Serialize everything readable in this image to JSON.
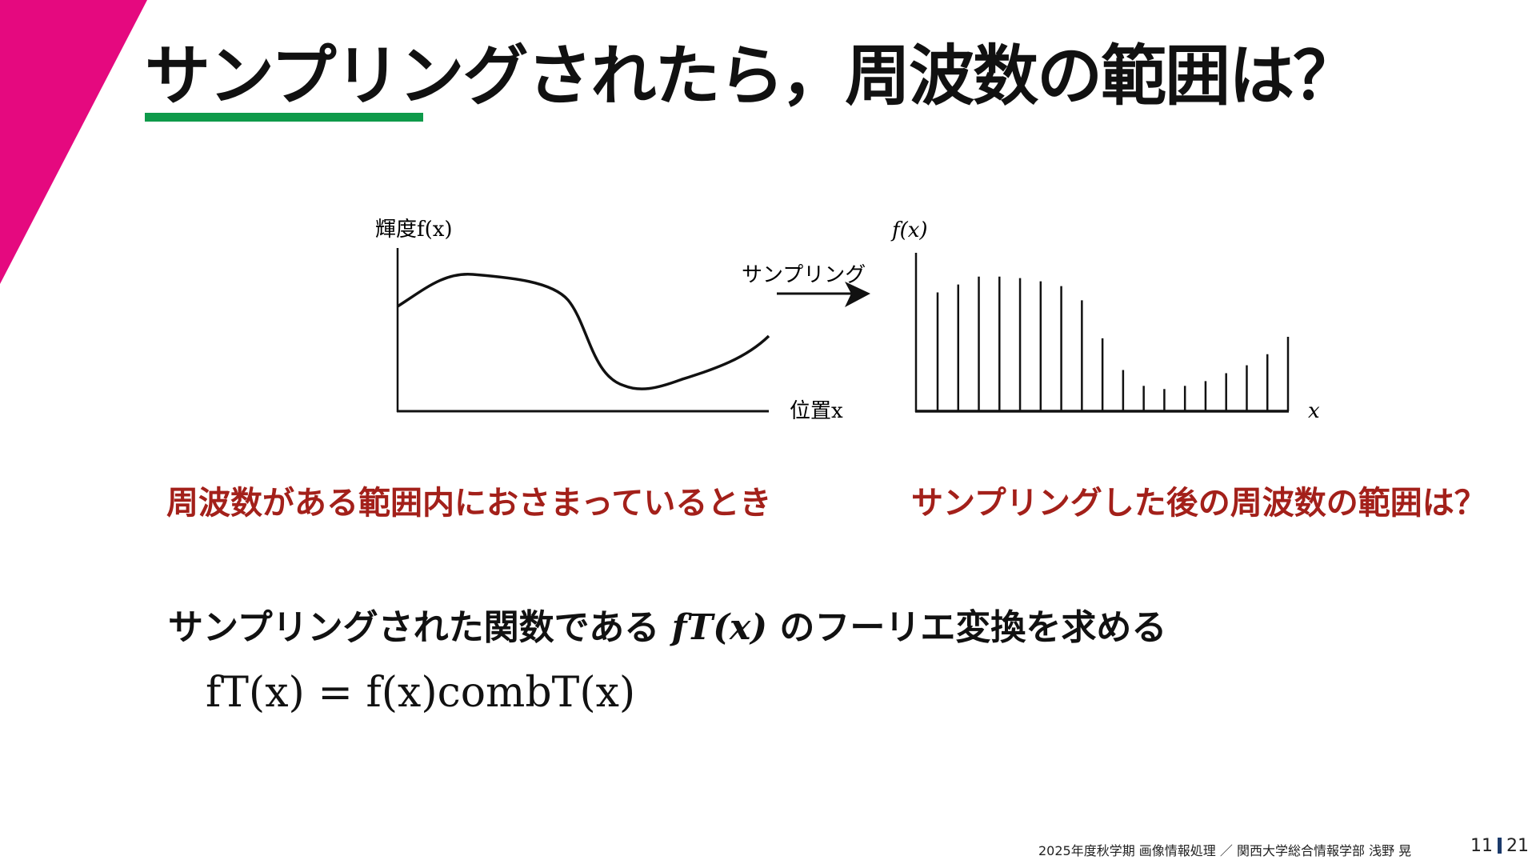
{
  "slide": {
    "title": "サンプリングされたら，周波数の範囲は？",
    "accent_colors": {
      "triangle": "#e5097f",
      "underline": "#0e9a4a",
      "highlight_text": "#a3201a",
      "page_bar": "#1b3a6b"
    }
  },
  "diagram": {
    "left_ylabel": "輝度f(x)",
    "left_xlabel": "位置x",
    "arrow_label": "サンプリング",
    "right_ylabel": "f(x)",
    "right_xlabel": "x",
    "samples": [
      0.75,
      0.8,
      0.85,
      0.85,
      0.84,
      0.82,
      0.79,
      0.7,
      0.46,
      0.26,
      0.16,
      0.14,
      0.16,
      0.19,
      0.24,
      0.29,
      0.36,
      0.47
    ]
  },
  "body": {
    "left_caption": "周波数がある範囲内におさまっているとき",
    "right_caption": "サンプリングした後の周波数の範囲は？",
    "subtitle_pre": "サンプリングされた関数である ",
    "subtitle_math": "fT(x)",
    "subtitle_post": " のフーリエ変換を求める",
    "formula": "fT(x) = f(x)combT(x)"
  },
  "footer": {
    "text": "2025年度秋学期  画像情報処理 ／  関西大学総合情報学部  浅野  晃",
    "page_current": "11",
    "page_total": "21"
  }
}
